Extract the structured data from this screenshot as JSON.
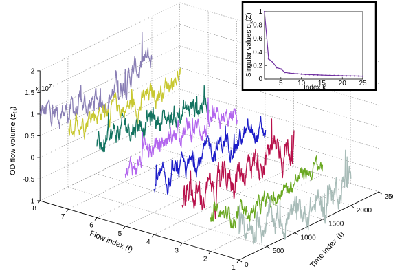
{
  "chart_data": [
    {
      "type": "line",
      "projection": "3d",
      "zlabel_prefix": "OD flow volume (z",
      "zlabel_sub": "f,t",
      "zlabel_suffix": ")",
      "xlabel": "Flow index (f)",
      "ylabel": "Time index (t)",
      "exponent_base": "x 10",
      "exponent_power": "7",
      "z_ticks": [
        "-1",
        "-0.5",
        "0",
        "0.5",
        "1",
        "1.5",
        "2"
      ],
      "z_range": [
        -1,
        2
      ],
      "flow_ticks": [
        "1",
        "2",
        "3",
        "4",
        "5",
        "6",
        "7",
        "8"
      ],
      "flow_range": [
        1,
        8
      ],
      "time_ticks": [
        "0",
        "500",
        "1000",
        "1500",
        "2000",
        "250"
      ],
      "time_range": [
        0,
        2500
      ],
      "grid": true,
      "series": [
        {
          "flow": 8,
          "color": "#8a7fb5",
          "level": 0.8,
          "noise": 0.35,
          "time_span": [
            0,
            2000
          ]
        },
        {
          "flow": 7,
          "color": "#c8c832",
          "level": 0.8,
          "noise": 0.3,
          "time_span": [
            0,
            2000
          ]
        },
        {
          "flow": 6,
          "color": "#137360",
          "level": 0.6,
          "noise": 0.35,
          "time_span": [
            0,
            2000
          ]
        },
        {
          "flow": 5,
          "color": "#b366ee",
          "level": 0.4,
          "noise": 0.3,
          "time_span": [
            0,
            2000
          ]
        },
        {
          "flow": 4,
          "color": "#1d1dc8",
          "level": 0.2,
          "noise": 0.3,
          "time_span": [
            0,
            2000
          ]
        },
        {
          "flow": 3,
          "color": "#b8104a",
          "level": 0.0,
          "noise": 0.45,
          "time_span": [
            0,
            2000
          ]
        },
        {
          "flow": 2,
          "color": "#6aa820",
          "level": -0.4,
          "noise": 0.25,
          "time_span": [
            0,
            2000
          ]
        },
        {
          "flow": 1,
          "color": "#a8bcb8",
          "level": -0.5,
          "noise": 0.4,
          "time_span": [
            0,
            2000
          ]
        }
      ]
    },
    {
      "type": "line",
      "xlabel": "Index k",
      "ylabel_prefix": "Singular values σ",
      "ylabel_sub": "k",
      "ylabel_suffix": "(Z)",
      "x_ticks": [
        "5",
        "10",
        "15",
        "20",
        "25"
      ],
      "y_ticks": [
        "0",
        "0.2",
        "0.4",
        "0.6",
        "0.8",
        "1"
      ],
      "xlim": [
        1,
        25
      ],
      "ylim": [
        0,
        1
      ],
      "color": "#7030a0",
      "x": [
        1,
        2,
        3,
        4,
        5,
        6,
        7,
        8,
        9,
        10,
        11,
        12,
        13,
        14,
        15,
        16,
        17,
        18,
        19,
        20,
        21,
        22,
        23,
        24,
        25
      ],
      "values": [
        1.0,
        0.3,
        0.25,
        0.17,
        0.15,
        0.1,
        0.09,
        0.085,
        0.08,
        0.075,
        0.07,
        0.068,
        0.065,
        0.063,
        0.06,
        0.058,
        0.056,
        0.054,
        0.052,
        0.05,
        0.049,
        0.048,
        0.047,
        0.046,
        0.045
      ]
    }
  ]
}
